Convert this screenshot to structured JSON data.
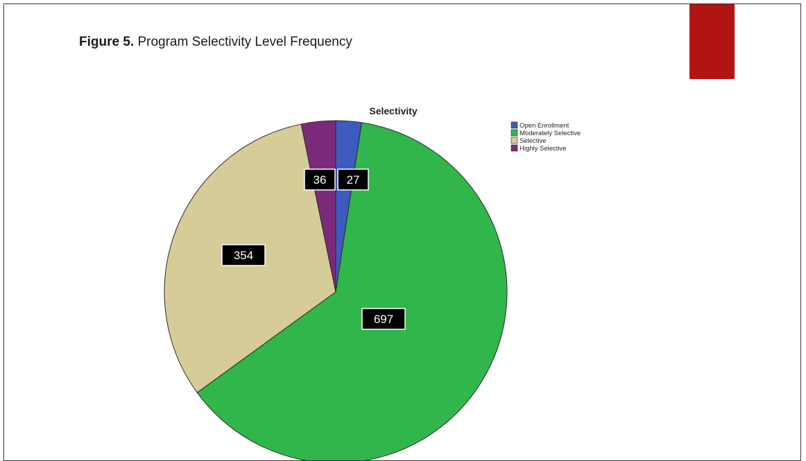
{
  "figure": {
    "label": "Figure 5.",
    "caption": "Program Selectivity Level Frequency"
  },
  "colors": {
    "accent": "#b01513",
    "slice_stroke": "#2a2a2a",
    "label_bg": "#000000"
  },
  "chart_data": {
    "type": "pie",
    "title": "Selectivity",
    "start_angle_deg": 0,
    "direction": "clockwise",
    "legend_position": "top-right",
    "slices": [
      {
        "name": "Open Enrollment",
        "value": 27,
        "label": "27",
        "color": "#3c5bbf"
      },
      {
        "name": "Moderately Selective",
        "value": 697,
        "label": "697",
        "color": "#30b64a"
      },
      {
        "name": "Selective",
        "value": 354,
        "label": "354",
        "color": "#d6cc97"
      },
      {
        "name": "Highly Selective",
        "value": 36,
        "label": "36",
        "color": "#7b2a7a"
      }
    ]
  }
}
